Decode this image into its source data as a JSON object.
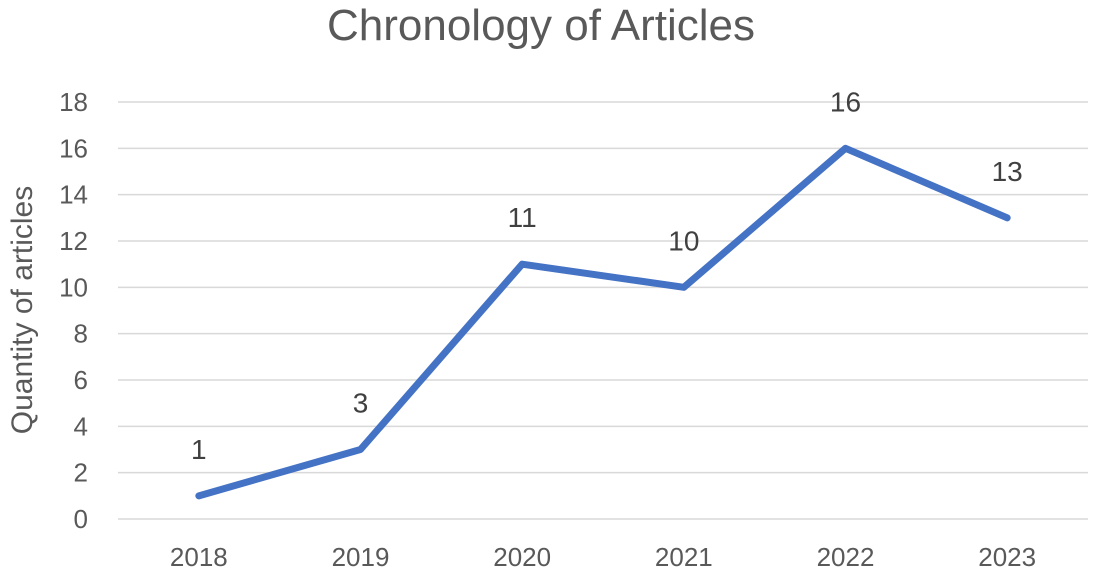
{
  "chart_data": {
    "type": "line",
    "title": "Chronology of Articles",
    "xlabel": "",
    "ylabel": "Quantity of articles",
    "categories": [
      "2018",
      "2019",
      "2020",
      "2021",
      "2022",
      "2023"
    ],
    "values": [
      1,
      3,
      11,
      10,
      16,
      13
    ],
    "ylim": [
      0,
      18
    ],
    "yticks": [
      0,
      2,
      4,
      6,
      8,
      10,
      12,
      14,
      16,
      18
    ],
    "grid": true,
    "data_labels": true,
    "series_color": "#4472c4",
    "legend": "none"
  }
}
